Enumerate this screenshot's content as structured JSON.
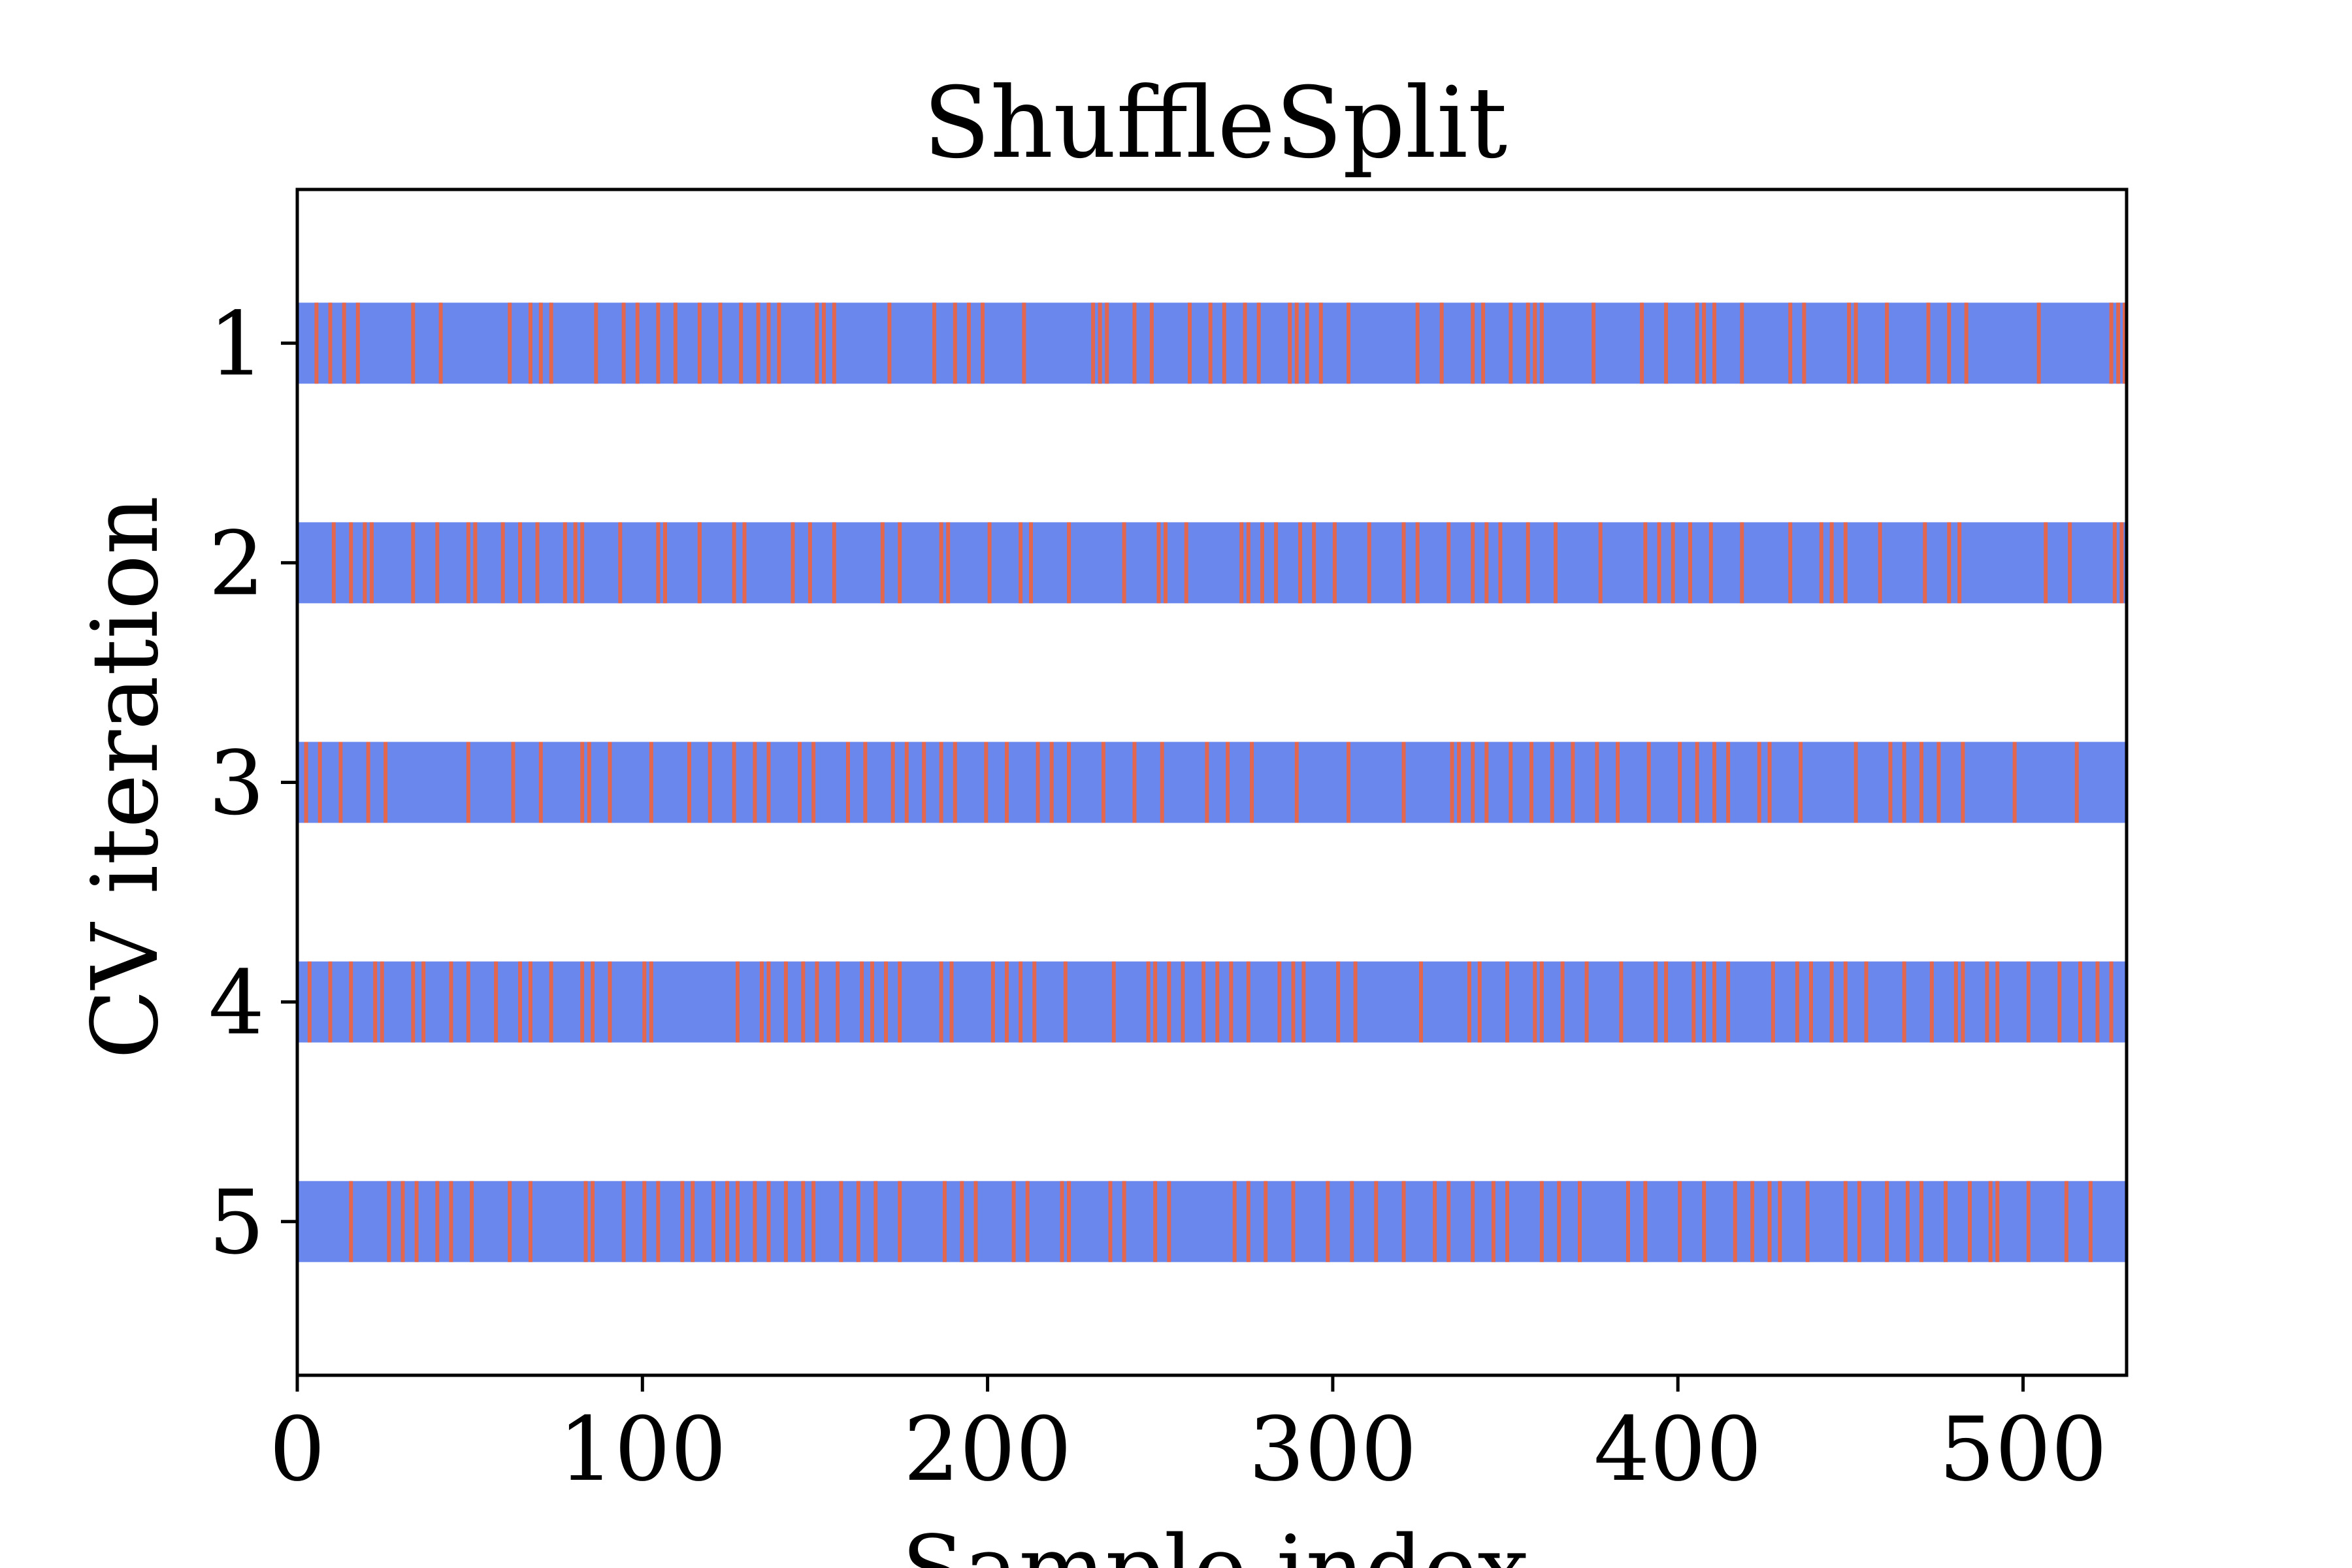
{
  "chart_data": {
    "type": "heatmap",
    "title": "ShuffleSplit",
    "xlabel": "Sample index",
    "ylabel": "CV iteration",
    "xlim": [
      0,
      530
    ],
    "ylim": [
      5.7,
      0.3
    ],
    "x_ticks": [
      0,
      100,
      200,
      300,
      400,
      500
    ],
    "y_ticks": [
      1,
      2,
      3,
      4,
      5
    ],
    "grid": false,
    "n_samples": 530,
    "colors": {
      "train": "#6a87ee",
      "test": "#e2674e"
    },
    "iterations": [
      {
        "label": "1",
        "test_indices": [
          5,
          9,
          13,
          17,
          33,
          41,
          61,
          67,
          70,
          73,
          86,
          94,
          98,
          104,
          109,
          116,
          122,
          128,
          133,
          136,
          139,
          150,
          152,
          155,
          171,
          184,
          190,
          194,
          198,
          210,
          230,
          232,
          234,
          242,
          247,
          258,
          264,
          268,
          274,
          278,
          287,
          289,
          292,
          296,
          304,
          324,
          331,
          340,
          343,
          351,
          356,
          358,
          360,
          375,
          389,
          396,
          405,
          407,
          410,
          418,
          432,
          436,
          449,
          451,
          460,
          472,
          478,
          483,
          504,
          525,
          527,
          529
        ]
      },
      {
        "label": "2",
        "test_indices": [
          10,
          15,
          19,
          21,
          33,
          40,
          49,
          51,
          59,
          64,
          69,
          77,
          80,
          82,
          93,
          104,
          106,
          116,
          116,
          126,
          129,
          143,
          148,
          155,
          169,
          174,
          186,
          188,
          200,
          209,
          212,
          223,
          239,
          249,
          251,
          257,
          273,
          275,
          279,
          283,
          290,
          294,
          300,
          310,
          320,
          324,
          333,
          340,
          344,
          348,
          356,
          364,
          377,
          390,
          394,
          398,
          403,
          409,
          418,
          432,
          441,
          444,
          448,
          458,
          471,
          478,
          481,
          506,
          513,
          526,
          528
        ]
      },
      {
        "label": "3",
        "test_indices": [
          2,
          6,
          12,
          20,
          25,
          49,
          62,
          70,
          82,
          84,
          90,
          102,
          113,
          119,
          126,
          132,
          136,
          145,
          149,
          159,
          164,
          172,
          176,
          181,
          186,
          190,
          199,
          205,
          214,
          218,
          223,
          233,
          242,
          250,
          263,
          269,
          276,
          289,
          304,
          320,
          334,
          336,
          340,
          344,
          351,
          357,
          363,
          369,
          376,
          382,
          391,
          400,
          405,
          410,
          414,
          423,
          426,
          435,
          451,
          461,
          465,
          470,
          475,
          482,
          497,
          515
        ]
      },
      {
        "label": "4",
        "test_indices": [
          3,
          9,
          15,
          22,
          24,
          33,
          36,
          44,
          49,
          57,
          64,
          67,
          73,
          82,
          85,
          90,
          100,
          102,
          127,
          134,
          136,
          141,
          146,
          150,
          156,
          163,
          166,
          170,
          174,
          186,
          189,
          201,
          205,
          209,
          213,
          222,
          236,
          246,
          248,
          252,
          256,
          262,
          266,
          270,
          275,
          284,
          288,
          291,
          301,
          306,
          325,
          339,
          342,
          350,
          358,
          360,
          366,
          373,
          383,
          393,
          396,
          404,
          407,
          410,
          414,
          427,
          434,
          438,
          444,
          448,
          454,
          465,
          473,
          480,
          482,
          489,
          492,
          501,
          510,
          516,
          521,
          525
        ]
      },
      {
        "label": "5",
        "test_indices": [
          15,
          26,
          30,
          34,
          40,
          44,
          50,
          61,
          67,
          83,
          85,
          94,
          100,
          104,
          111,
          114,
          120,
          124,
          127,
          132,
          136,
          141,
          146,
          149,
          157,
          162,
          167,
          174,
          187,
          192,
          196,
          207,
          211,
          221,
          223,
          235,
          239,
          248,
          252,
          271,
          275,
          280,
          288,
          298,
          305,
          312,
          320,
          329,
          333,
          340,
          346,
          350,
          360,
          365,
          371,
          385,
          390,
          400,
          407,
          416,
          421,
          426,
          429,
          437,
          448,
          452,
          460,
          466,
          470,
          477,
          484,
          490,
          492,
          501,
          512,
          519
        ]
      }
    ]
  }
}
